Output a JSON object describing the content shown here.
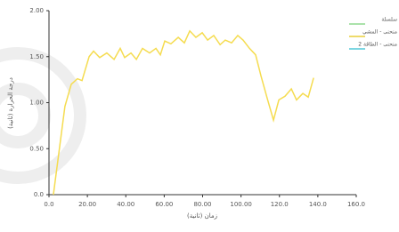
{
  "chart_data": {
    "type": "line",
    "x_label": "زمان (ثانية)",
    "y_label": "درجة الحرارة (ثانية)",
    "legend_position": "right",
    "legend": [
      {
        "name": "سلسلة",
        "color": "#8fd98f"
      },
      {
        "name": "منحنى - المشي",
        "color": "#e8cf3a"
      },
      {
        "name": "منحنى - الطاقة 2",
        "color": "#52c8d8"
      }
    ],
    "xlim": [
      0,
      160
    ],
    "xticks": [
      {
        "value": 0,
        "label": "0.0"
      },
      {
        "value": 20,
        "label": "20.00"
      },
      {
        "value": 40,
        "label": "40.00"
      },
      {
        "value": 60,
        "label": "60.00"
      },
      {
        "value": 80,
        "label": "80.00"
      },
      {
        "value": 100,
        "label": "100.00"
      },
      {
        "value": 120,
        "label": "120.0"
      },
      {
        "value": 140,
        "label": "140.0"
      },
      {
        "value": 160,
        "label": "160.0"
      }
    ],
    "ylim": [
      0,
      2
    ],
    "yticks": [
      {
        "value": 0,
        "label": "0.0"
      },
      {
        "value": 0.5,
        "label": "0.50"
      },
      {
        "value": 1,
        "label": "1.00"
      },
      {
        "value": 1.5,
        "label": "1.50"
      },
      {
        "value": 2,
        "label": "2.00"
      }
    ],
    "series": [
      {
        "color": "#f5dc50",
        "x": [
          2.3,
          8.3,
          11.6,
          14.8,
          17.2,
          20.9,
          23.2,
          26.4,
          30.1,
          33.9,
          37.1,
          39.4,
          42.7,
          45.5,
          48.7,
          52.4,
          55.7,
          58.0,
          60.3,
          63.5,
          67.3,
          70.5,
          73.3,
          76.5,
          79.8,
          82.6,
          85.8,
          89.1,
          91.8,
          95.1,
          98.3,
          101.1,
          104.4,
          107.6,
          110.4,
          113.6,
          116.9,
          119.7,
          122.9,
          126.2,
          128.9,
          132.2,
          135.0,
          137.8
        ],
        "values": [
          0,
          0.96,
          1.2,
          1.26,
          1.24,
          1.5,
          1.56,
          1.49,
          1.54,
          1.47,
          1.59,
          1.49,
          1.54,
          1.47,
          1.59,
          1.54,
          1.59,
          1.52,
          1.67,
          1.64,
          1.71,
          1.65,
          1.78,
          1.71,
          1.76,
          1.68,
          1.73,
          1.63,
          1.68,
          1.65,
          1.73,
          1.68,
          1.59,
          1.52,
          1.29,
          1.05,
          0.81,
          1.03,
          1.07,
          1.15,
          1.03,
          1.1,
          1.06,
          1.27
        ]
      }
    ]
  }
}
